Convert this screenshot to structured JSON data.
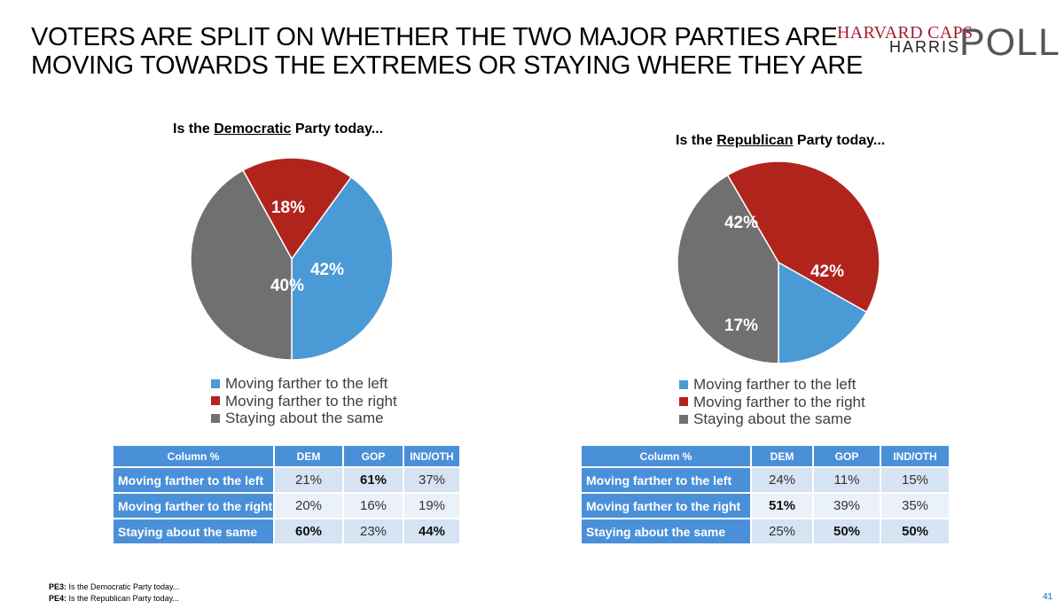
{
  "header": {
    "title_line1": "VOTERS ARE SPLIT ON WHETHER THE TWO MAJOR PARTIES ARE",
    "title_line2": "MOVING TOWARDS THE EXTREMES OR STAYING WHERE THEY ARE"
  },
  "logo": {
    "line1": "HARVARD CAPS",
    "line2": "HARRIS",
    "line3": "POLL",
    "color_brand": "#a6192e"
  },
  "colors": {
    "left": "#4a9ad6",
    "right": "#b1241c",
    "same": "#707070",
    "table_header": "#4a90d9"
  },
  "chart_data": [
    {
      "type": "pie",
      "title_prefix": "Is the ",
      "title_party": "Democratic",
      "title_suffix": " Party today...",
      "labels": [
        "Moving farther to the left",
        "Moving farther to the right",
        "Staying about the same"
      ],
      "values": [
        40,
        18,
        42
      ],
      "value_labels": [
        "40%",
        "18%",
        "42%"
      ],
      "legend_position": "bottom"
    },
    {
      "type": "pie",
      "title_prefix": "Is the ",
      "title_party": "Republican",
      "title_suffix": " Party today...",
      "labels": [
        "Moving farther to the left",
        "Moving farther to the right",
        "Staying about the same"
      ],
      "values": [
        17,
        42,
        42
      ],
      "value_labels": [
        "17%",
        "42%",
        "42%"
      ],
      "legend_position": "bottom"
    }
  ],
  "tables": [
    {
      "headers": [
        "Column %",
        "DEM",
        "GOP",
        "IND/OTH"
      ],
      "rows": [
        {
          "label": "Moving farther to the left",
          "values": [
            "21%",
            "61%",
            "37%"
          ],
          "bold": [
            false,
            true,
            false
          ]
        },
        {
          "label": "Moving farther to the right",
          "values": [
            "20%",
            "16%",
            "19%"
          ],
          "bold": [
            false,
            false,
            false
          ]
        },
        {
          "label": "Staying about the same",
          "values": [
            "60%",
            "23%",
            "44%"
          ],
          "bold": [
            true,
            false,
            true
          ]
        }
      ]
    },
    {
      "headers": [
        "Column %",
        "DEM",
        "GOP",
        "IND/OTH"
      ],
      "rows": [
        {
          "label": "Moving farther to the left",
          "values": [
            "24%",
            "11%",
            "15%"
          ],
          "bold": [
            false,
            false,
            false
          ]
        },
        {
          "label": "Moving farther to the right",
          "values": [
            "51%",
            "39%",
            "35%"
          ],
          "bold": [
            true,
            false,
            false
          ]
        },
        {
          "label": "Staying about the same",
          "values": [
            "25%",
            "50%",
            "50%"
          ],
          "bold": [
            false,
            true,
            true
          ]
        }
      ]
    }
  ],
  "footnotes": [
    {
      "code": "PE3:",
      "text": " Is the Democratic Party today..."
    },
    {
      "code": "PE4:",
      "text": " Is the Republican Party today..."
    }
  ],
  "page_number": "41"
}
